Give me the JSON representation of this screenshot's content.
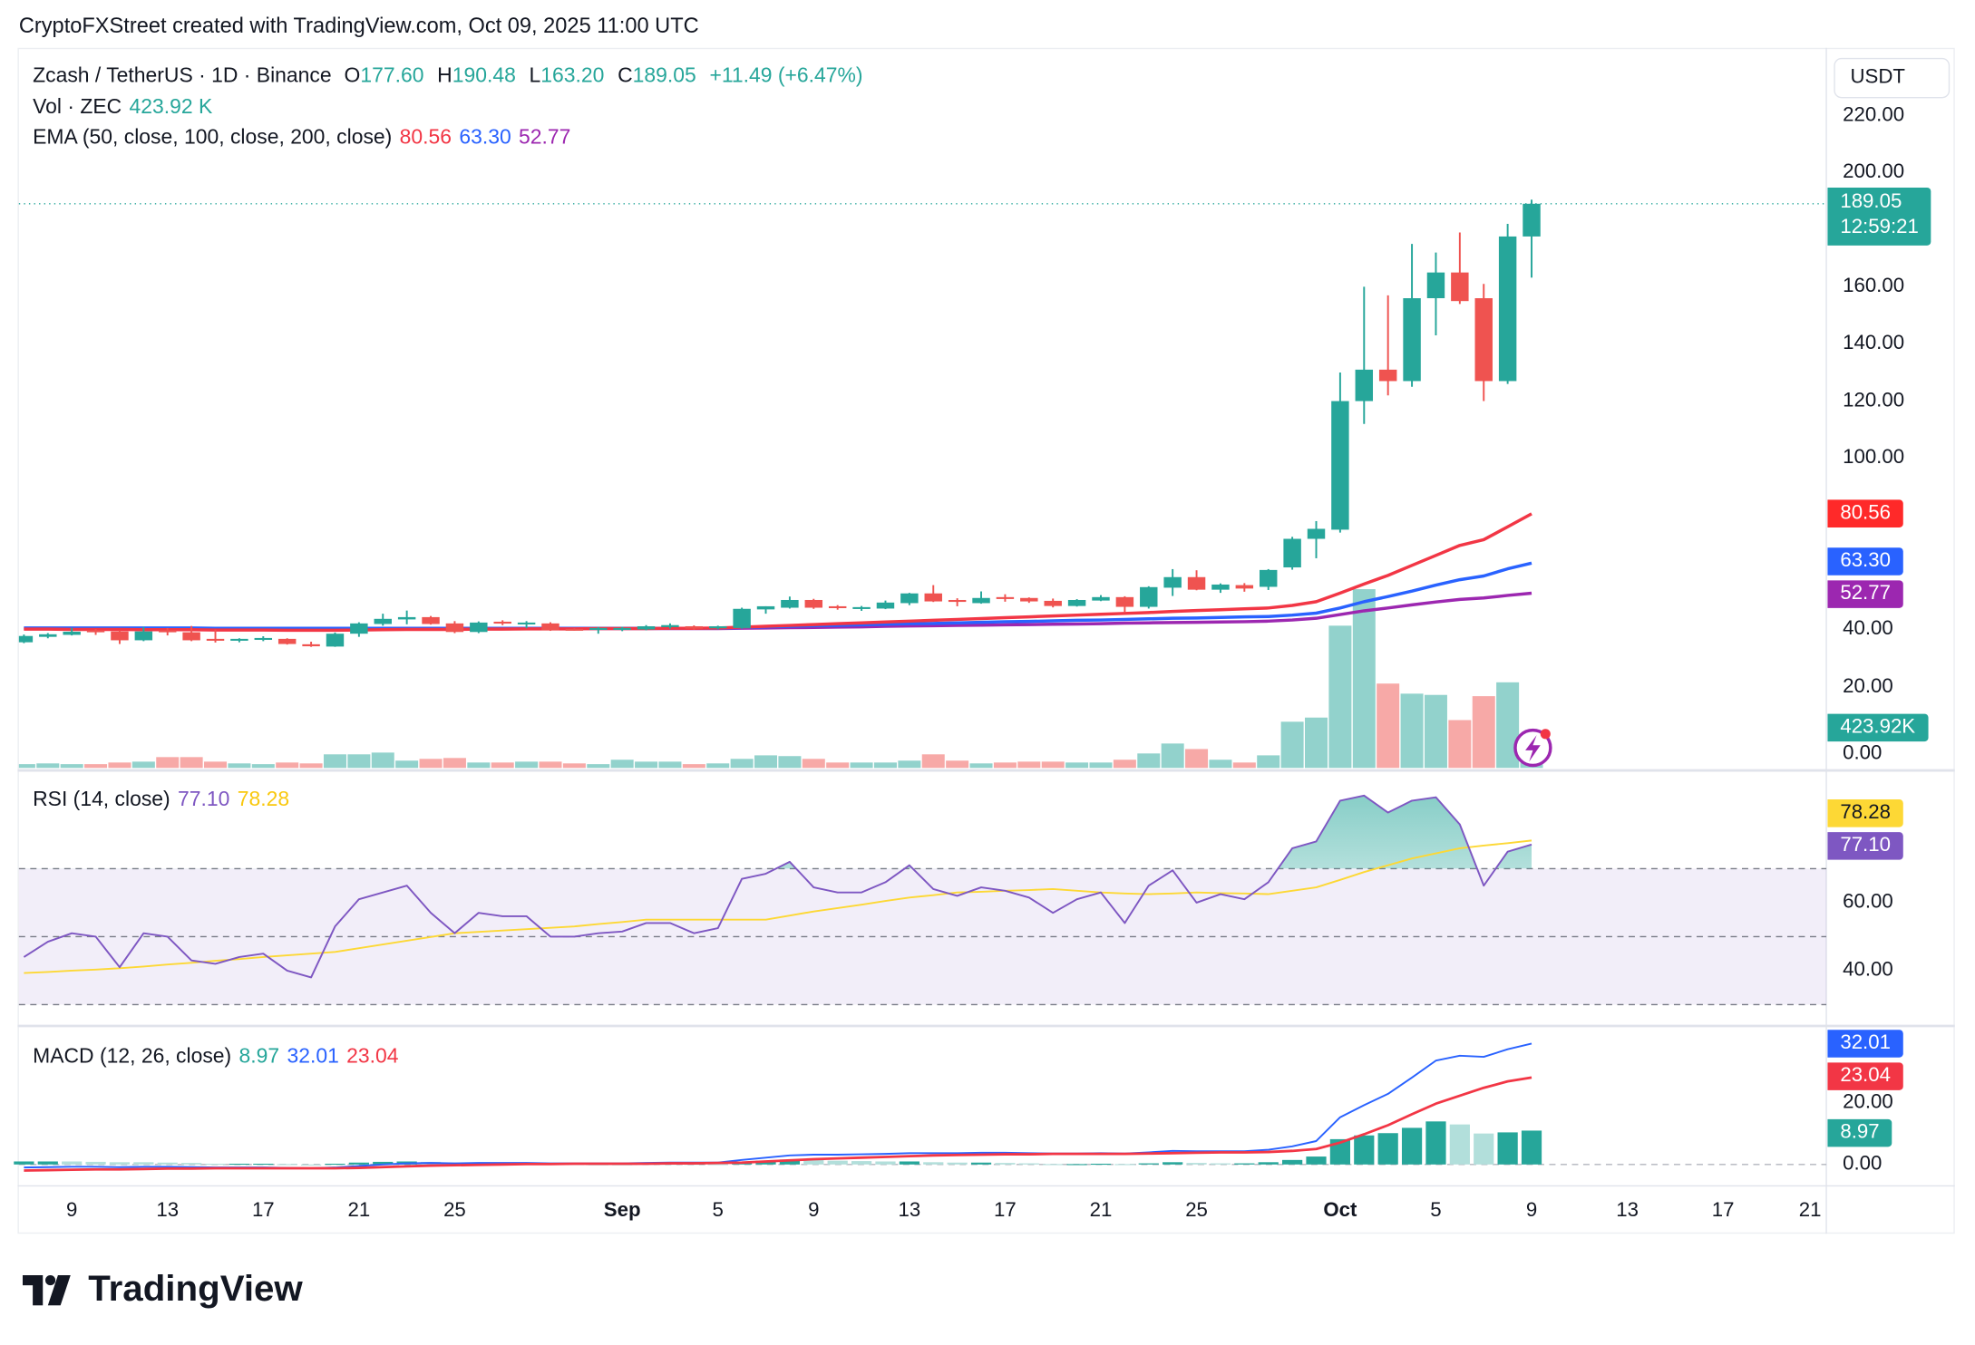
{
  "caption": "CryptoFXStreet created with TradingView.com, Oct 09, 2025 11:00 UTC",
  "legend": {
    "symbol": "Zcash / TetherUS · 1D · Binance",
    "o_label": "O",
    "open": "177.60",
    "h_label": "H",
    "high": "190.48",
    "l_label": "L",
    "low": "163.20",
    "c_label": "C",
    "close": "189.05",
    "change": "+11.49 (+6.47%)",
    "vol_label": "Vol · ZEC",
    "vol_value": "423.92 K",
    "ema_label": "EMA (50, close, 100, close, 200, close)",
    "ema50": "80.56",
    "ema100": "63.30",
    "ema200": "52.77",
    "rsi_label": "RSI (14, close)",
    "rsi_value": "77.10",
    "rsi_ma_value": "78.28",
    "macd_label": "MACD (12, 26, close)",
    "macd_hist": "8.97",
    "macd_line": "32.01",
    "macd_signal": "23.04"
  },
  "currency_button": "USDT",
  "price_tag": {
    "price": "189.05",
    "countdown": "12:59:21"
  },
  "axis_tags": {
    "ema50": "80.56",
    "ema100": "63.30",
    "ema200": "52.77",
    "volume": "423.92K",
    "rsi_ma": "78.28",
    "rsi": "77.10",
    "macd": "32.01",
    "signal": "23.04",
    "hist": "8.97"
  },
  "colors": {
    "up": "#26a69a",
    "down": "#ef5350",
    "vol_up": "#92d2cc",
    "vol_down": "#f7a9a7",
    "ema50": "#f23645",
    "ema100": "#2962ff",
    "ema200": "#9c27b0",
    "rsi": "#7e57c2",
    "rsi_ma": "#fdd835",
    "macd": "#2962ff",
    "signal": "#f23645"
  },
  "logo_text": "TradingView",
  "chart_data": [
    {
      "type": "candlestick",
      "title": "Zcash / TetherUS · 1D · Binance",
      "price_ticks": [
        220,
        200,
        160,
        140,
        120,
        100,
        40,
        20,
        0
      ],
      "ylim": [
        0,
        230
      ],
      "x_ticks": [
        {
          "label": "9",
          "index": 2
        },
        {
          "label": "13",
          "index": 6
        },
        {
          "label": "17",
          "index": 10
        },
        {
          "label": "21",
          "index": 14
        },
        {
          "label": "25",
          "index": 18
        },
        {
          "label": "Sep",
          "index": 25,
          "bold": true
        },
        {
          "label": "5",
          "index": 29
        },
        {
          "label": "9",
          "index": 33
        },
        {
          "label": "13",
          "index": 37
        },
        {
          "label": "17",
          "index": 41
        },
        {
          "label": "21",
          "index": 45
        },
        {
          "label": "25",
          "index": 49
        },
        {
          "label": "Oct",
          "index": 55,
          "bold": true
        },
        {
          "label": "5",
          "index": 59
        },
        {
          "label": "9",
          "index": 63
        },
        {
          "label": "13",
          "index": 67
        },
        {
          "label": "17",
          "index": 71
        },
        {
          "label": "21",
          "index": 75
        }
      ],
      "ohlc": [
        [
          35.6,
          38.3,
          35.3,
          37.8
        ],
        [
          37.5,
          38.8,
          37.0,
          38.4
        ],
        [
          38.2,
          40.6,
          38.0,
          39.3
        ],
        [
          39.8,
          40.2,
          38.2,
          39.1
        ],
        [
          39.4,
          39.8,
          35.0,
          36.3
        ],
        [
          36.3,
          41.0,
          36.0,
          39.4
        ],
        [
          39.8,
          40.6,
          38.0,
          39.1
        ],
        [
          39.1,
          41.3,
          36.0,
          36.3
        ],
        [
          36.8,
          40.0,
          35.5,
          36.3
        ],
        [
          36.3,
          37.0,
          35.6,
          36.8
        ],
        [
          36.6,
          37.7,
          36.0,
          37.1
        ],
        [
          36.8,
          37.0,
          34.8,
          35.0
        ],
        [
          34.9,
          35.8,
          34.0,
          34.2
        ],
        [
          34.1,
          39.0,
          34.0,
          38.6
        ],
        [
          38.6,
          42.6,
          37.5,
          42.2
        ],
        [
          42.0,
          45.6,
          41.4,
          43.8
        ],
        [
          43.6,
          46.7,
          41.9,
          44.4
        ],
        [
          44.4,
          44.8,
          41.8,
          42.0
        ],
        [
          42.2,
          43.0,
          38.8,
          39.2
        ],
        [
          39.2,
          42.9,
          38.8,
          42.5
        ],
        [
          42.8,
          43.3,
          41.6,
          42.3
        ],
        [
          42.0,
          43.0,
          40.5,
          42.5
        ],
        [
          42.2,
          42.6,
          39.6,
          39.8
        ],
        [
          40.3,
          40.5,
          39.7,
          39.8
        ],
        [
          40.1,
          40.9,
          38.6,
          40.6
        ],
        [
          40.1,
          41.0,
          39.5,
          40.6
        ],
        [
          40.1,
          41.6,
          39.8,
          41.2
        ],
        [
          40.9,
          42.2,
          40.4,
          41.6
        ],
        [
          41.2,
          41.5,
          40.0,
          40.4
        ],
        [
          40.5,
          41.4,
          40.2,
          41.2
        ],
        [
          40.6,
          47.7,
          40.4,
          47.3
        ],
        [
          47.1,
          48.2,
          45.6,
          48.2
        ],
        [
          47.7,
          51.6,
          47.4,
          50.4
        ],
        [
          50.4,
          50.8,
          47.3,
          47.7
        ],
        [
          48.2,
          48.6,
          47.0,
          47.7
        ],
        [
          47.4,
          48.3,
          46.6,
          47.9
        ],
        [
          47.4,
          50.2,
          47.2,
          49.5
        ],
        [
          49.3,
          52.9,
          48.6,
          52.7
        ],
        [
          52.7,
          55.6,
          49.7,
          49.9
        ],
        [
          50.4,
          51.0,
          48.2,
          49.9
        ],
        [
          49.3,
          53.4,
          49.1,
          51.1
        ],
        [
          51.4,
          52.4,
          49.8,
          50.9
        ],
        [
          51.1,
          51.3,
          49.4,
          49.9
        ],
        [
          50.1,
          50.9,
          47.8,
          48.3
        ],
        [
          48.3,
          50.7,
          48.1,
          50.4
        ],
        [
          50.2,
          52.1,
          50.0,
          51.4
        ],
        [
          51.4,
          51.7,
          46.0,
          48.0
        ],
        [
          48.0,
          55.2,
          47.4,
          54.9
        ],
        [
          54.7,
          61.2,
          51.8,
          58.4
        ],
        [
          58.4,
          60.8,
          53.8,
          54.0
        ],
        [
          54.0,
          56.2,
          52.9,
          55.8
        ],
        [
          55.6,
          56.3,
          53.3,
          54.4
        ],
        [
          55.0,
          61.2,
          53.9,
          60.9
        ],
        [
          61.8,
          72.5,
          61.0,
          71.8
        ],
        [
          71.8,
          78.0,
          65.0,
          75.3
        ],
        [
          75.0,
          130.0,
          74.0,
          120.0
        ],
        [
          120.0,
          160.0,
          112.0,
          131.0
        ],
        [
          131.0,
          157.0,
          122.0,
          127.0
        ],
        [
          127.0,
          175.0,
          125.0,
          156.0
        ],
        [
          156.0,
          172.0,
          143.0,
          165.0
        ],
        [
          165.0,
          179.0,
          154.0,
          155.0
        ],
        [
          156.0,
          161.0,
          120.0,
          127.0
        ],
        [
          127.0,
          182.0,
          126.0,
          177.6
        ],
        [
          177.6,
          190.48,
          163.2,
          189.05
        ]
      ],
      "volume_k": [
        300,
        360,
        300,
        300,
        430,
        500,
        860,
        860,
        500,
        360,
        300,
        430,
        360,
        1080,
        1080,
        1220,
        580,
        720,
        790,
        430,
        430,
        500,
        500,
        360,
        300,
        650,
        500,
        500,
        300,
        360,
        720,
        1000,
        940,
        720,
        430,
        430,
        430,
        580,
        1080,
        580,
        360,
        430,
        500,
        500,
        430,
        430,
        650,
        1150,
        1940,
        1500,
        650,
        430,
        1000,
        3670,
        4000,
        11300,
        14200,
        6700,
        5900,
        5800,
        3800,
        5700,
        6800,
        423.92
      ],
      "ema50": [
        40.2,
        40.2,
        40.1,
        40.1,
        40.1,
        40.0,
        40.0,
        40.0,
        39.9,
        39.9,
        39.9,
        39.8,
        39.8,
        39.8,
        39.9,
        40.0,
        40.1,
        40.1,
        40.1,
        40.2,
        40.2,
        40.3,
        40.3,
        40.3,
        40.4,
        40.4,
        40.4,
        40.5,
        40.5,
        40.6,
        40.9,
        41.2,
        41.5,
        41.8,
        42.1,
        42.4,
        42.7,
        43.0,
        43.3,
        43.6,
        43.9,
        44.2,
        44.5,
        44.8,
        45.1,
        45.4,
        45.7,
        46.0,
        46.4,
        46.7,
        47.0,
        47.3,
        47.6,
        48.5,
        49.8,
        52.8,
        56.0,
        59.0,
        62.5,
        66.0,
        69.5,
        71.5,
        76.0,
        80.56
      ],
      "ema100": [
        40.6,
        40.6,
        40.6,
        40.6,
        40.6,
        40.6,
        40.6,
        40.6,
        40.5,
        40.5,
        40.5,
        40.5,
        40.5,
        40.5,
        40.5,
        40.5,
        40.5,
        40.5,
        40.5,
        40.5,
        40.5,
        40.5,
        40.5,
        40.5,
        40.5,
        40.5,
        40.5,
        40.5,
        40.5,
        40.5,
        40.8,
        41.0,
        41.2,
        41.4,
        41.5,
        41.7,
        41.9,
        42.1,
        42.2,
        42.4,
        42.6,
        42.8,
        42.9,
        43.1,
        43.3,
        43.4,
        43.6,
        43.8,
        44.0,
        44.1,
        44.3,
        44.5,
        44.6,
        45.1,
        45.8,
        47.6,
        49.8,
        51.6,
        53.5,
        55.6,
        57.5,
        58.8,
        61.3,
        63.3
      ],
      "ema200": [
        40.4,
        40.4,
        40.4,
        40.4,
        40.4,
        40.4,
        40.4,
        40.4,
        40.4,
        40.4,
        40.4,
        40.4,
        40.4,
        40.4,
        40.4,
        40.4,
        40.4,
        40.4,
        40.4,
        40.4,
        40.4,
        40.4,
        40.4,
        40.4,
        40.4,
        40.4,
        40.4,
        40.4,
        40.4,
        40.4,
        40.5,
        40.6,
        40.7,
        40.8,
        40.9,
        41.0,
        41.2,
        41.3,
        41.4,
        41.5,
        41.6,
        41.7,
        41.8,
        41.9,
        42.0,
        42.1,
        42.3,
        42.4,
        42.5,
        42.6,
        42.7,
        42.8,
        43.0,
        43.4,
        44.0,
        45.3,
        46.6,
        47.6,
        48.7,
        49.7,
        50.6,
        51.1,
        52.0,
        52.77
      ]
    },
    {
      "type": "line",
      "title": "RSI (14, close)",
      "ticks": [
        60,
        40
      ],
      "bands": {
        "upper": 70,
        "middle": 50,
        "lower": 30
      },
      "rsi": [
        44,
        48.5,
        51,
        50,
        41,
        51,
        50,
        43,
        42,
        44,
        45,
        40,
        38,
        53,
        61,
        63,
        65,
        57,
        51,
        57,
        56,
        56,
        50,
        50,
        51,
        51.5,
        54,
        54,
        51,
        52.5,
        67,
        68.5,
        72,
        64.5,
        63,
        63,
        66,
        71,
        64,
        62,
        64.5,
        63.5,
        61.5,
        57,
        61,
        63,
        54,
        65,
        69.5,
        60,
        62.5,
        61,
        66,
        76,
        78,
        90,
        91.5,
        86.5,
        90,
        91,
        83,
        65,
        75,
        77.1
      ],
      "rsi_ma": [
        39.3,
        39.6,
        40.0,
        40.3,
        40.7,
        41.2,
        41.8,
        42.3,
        42.9,
        43.4,
        44.0,
        44.5,
        45.0,
        45.5,
        46.6,
        47.7,
        48.8,
        49.9,
        51.0,
        51.4,
        51.8,
        52.2,
        52.6,
        53.0,
        53.7,
        54.3,
        55.0,
        55,
        55,
        55,
        55,
        55,
        56.2,
        57.4,
        58.4,
        59.4,
        60.5,
        61.5,
        62.2,
        63,
        63.2,
        63.5,
        63.7,
        64,
        63.5,
        63,
        62.7,
        62.5,
        62.7,
        63,
        62.8,
        62.7,
        62.5,
        63.5,
        64.5,
        66.7,
        69,
        71,
        73,
        74.5,
        76,
        76.8,
        77.5,
        78.28
      ]
    },
    {
      "type": "bar+line",
      "title": "MACD (12, 26, close)",
      "ticks": [
        20,
        0
      ],
      "macd": [
        -0.8,
        -0.7,
        -0.6,
        -0.6,
        -0.7,
        -0.6,
        -0.6,
        -0.7,
        -0.8,
        -0.8,
        -0.8,
        -0.9,
        -1.0,
        -0.8,
        -0.4,
        0.0,
        0.3,
        0.4,
        0.3,
        0.4,
        0.4,
        0.4,
        0.3,
        0.3,
        0.3,
        0.3,
        0.4,
        0.5,
        0.5,
        0.5,
        1.2,
        1.8,
        2.4,
        2.6,
        2.6,
        2.7,
        2.8,
        3.0,
        3.0,
        3.0,
        3.1,
        3.1,
        3.0,
        2.9,
        2.9,
        3.0,
        2.9,
        3.2,
        3.6,
        3.5,
        3.5,
        3.5,
        3.9,
        4.8,
        6.2,
        12.5,
        15.7,
        18.7,
        23.0,
        27.5,
        28.8,
        28.5,
        30.5,
        32.01
      ],
      "signal": [
        -1.6,
        -1.5,
        -1.4,
        -1.3,
        -1.3,
        -1.2,
        -1.1,
        -1.1,
        -1.0,
        -1.0,
        -1.0,
        -1.0,
        -1.0,
        -1.0,
        -0.9,
        -0.7,
        -0.5,
        -0.3,
        -0.2,
        -0.1,
        0,
        0.1,
        0.1,
        0.2,
        0.2,
        0.2,
        0.2,
        0.3,
        0.3,
        0.4,
        0.5,
        0.8,
        1.1,
        1.4,
        1.6,
        1.8,
        2.0,
        2.2,
        2.4,
        2.5,
        2.6,
        2.7,
        2.7,
        2.8,
        2.8,
        2.8,
        2.8,
        2.9,
        3.0,
        3.1,
        3.2,
        3.2,
        3.3,
        3.6,
        4.1,
        5.8,
        8.0,
        10.4,
        13.3,
        16.1,
        18.2,
        20.3,
        22.0,
        23.04
      ]
    }
  ]
}
